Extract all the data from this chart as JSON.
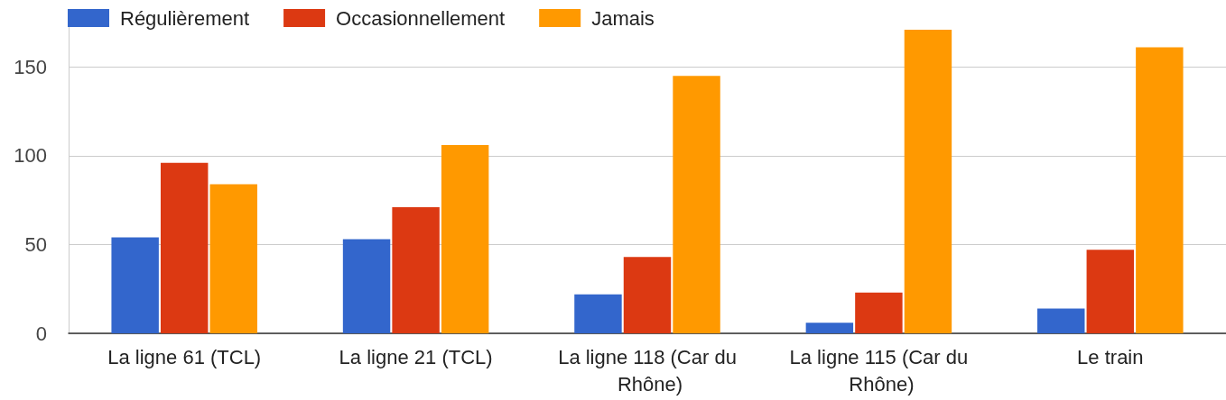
{
  "chart_data": {
    "type": "bar",
    "categories": [
      "La ligne 61 (TCL)",
      "La ligne 21 (TCL)",
      "La ligne 118 (Car du Rhône)",
      "La ligne 115 (Car du Rhône)",
      "Le train"
    ],
    "series": [
      {
        "name": "Régulièrement",
        "color": "#3366cc",
        "values": [
          54,
          53,
          22,
          6,
          14
        ]
      },
      {
        "name": "Occasionnellement",
        "color": "#dc3912",
        "values": [
          96,
          71,
          43,
          23,
          47
        ]
      },
      {
        "name": "Jamais",
        "color": "#ff9900",
        "values": [
          84,
          106,
          145,
          171,
          161
        ]
      }
    ],
    "ylim": [
      0,
      175
    ],
    "yticks": [
      0,
      50,
      100,
      150
    ],
    "grid": "y",
    "legend": "top left"
  }
}
